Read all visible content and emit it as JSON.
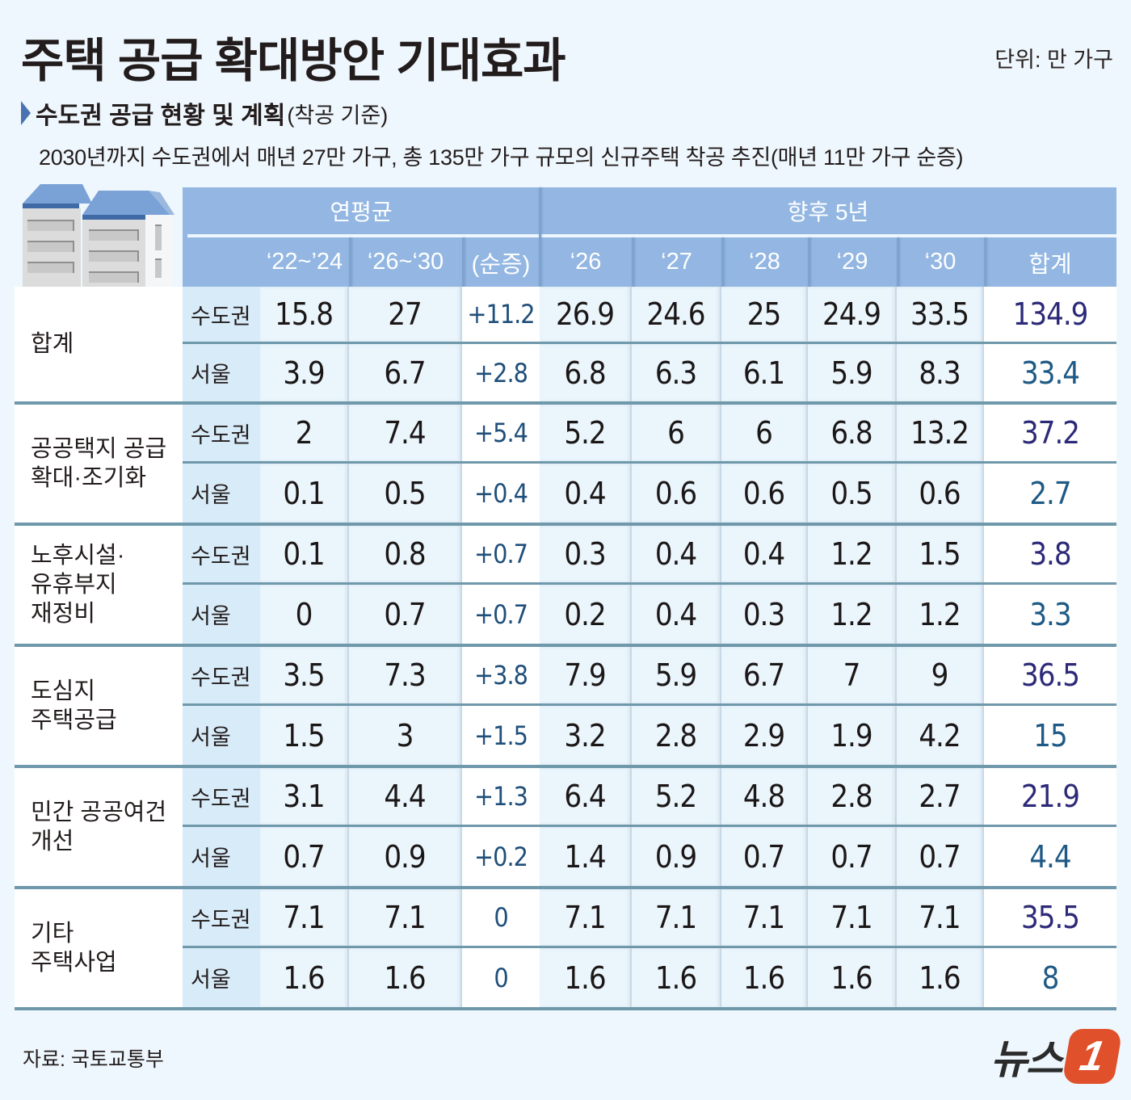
{
  "header": {
    "title": "주택 공급 확대방안 기대효과",
    "unit": "단위: 만 가구",
    "subtitle": "수도권 공급 현황 및 계획",
    "subtitle_note": "(착공 기준)",
    "description": "2030년까지 수도권에서 매년 27만 가구, 총 135만 가구 규모의 신규주택 착공 추진(매년 11만 가구 순증)"
  },
  "table": {
    "group_headers": [
      "연평균",
      "향후 5년"
    ],
    "columns": [
      "‘22~’24",
      "‘26~‘30",
      "(순증)",
      "‘26",
      "‘27",
      "‘28",
      "‘29",
      "‘30",
      "합계"
    ],
    "regions": [
      "수도권",
      "서울"
    ],
    "groups": [
      {
        "label": "합계",
        "rows": [
          {
            "region": "수도권",
            "values": [
              "15.8",
              "27",
              "+11.2",
              "26.9",
              "24.6",
              "25",
              "24.9",
              "33.5",
              "134.9"
            ]
          },
          {
            "region": "서울",
            "values": [
              "3.9",
              "6.7",
              "+2.8",
              "6.8",
              "6.3",
              "6.1",
              "5.9",
              "8.3",
              "33.4"
            ]
          }
        ]
      },
      {
        "label": "공공택지 공급\n확대·조기화",
        "rows": [
          {
            "region": "수도권",
            "values": [
              "2",
              "7.4",
              "+5.4",
              "5.2",
              "6",
              "6",
              "6.8",
              "13.2",
              "37.2"
            ]
          },
          {
            "region": "서울",
            "values": [
              "0.1",
              "0.5",
              "+0.4",
              "0.4",
              "0.6",
              "0.6",
              "0.5",
              "0.6",
              "2.7"
            ]
          }
        ]
      },
      {
        "label": "노후시설·\n유휴부지\n재정비",
        "rows": [
          {
            "region": "수도권",
            "values": [
              "0.1",
              "0.8",
              "+0.7",
              "0.3",
              "0.4",
              "0.4",
              "1.2",
              "1.5",
              "3.8"
            ]
          },
          {
            "region": "서울",
            "values": [
              "0",
              "0.7",
              "+0.7",
              "0.2",
              "0.4",
              "0.3",
              "1.2",
              "1.2",
              "3.3"
            ]
          }
        ]
      },
      {
        "label": "도심지\n주택공급",
        "rows": [
          {
            "region": "수도권",
            "values": [
              "3.5",
              "7.3",
              "+3.8",
              "7.9",
              "5.9",
              "6.7",
              "7",
              "9",
              "36.5"
            ]
          },
          {
            "region": "서울",
            "values": [
              "1.5",
              "3",
              "+1.5",
              "3.2",
              "2.8",
              "2.9",
              "1.9",
              "4.2",
              "15"
            ]
          }
        ]
      },
      {
        "label": "민간 공공여건\n개선",
        "rows": [
          {
            "region": "수도권",
            "values": [
              "3.1",
              "4.4",
              "+1.3",
              "6.4",
              "5.2",
              "4.8",
              "2.8",
              "2.7",
              "21.9"
            ]
          },
          {
            "region": "서울",
            "values": [
              "0.7",
              "0.9",
              "+0.2",
              "1.4",
              "0.9",
              "0.7",
              "0.7",
              "0.7",
              "4.4"
            ]
          }
        ]
      },
      {
        "label": "기타\n주택사업",
        "rows": [
          {
            "region": "수도권",
            "values": [
              "7.1",
              "7.1",
              "0",
              "7.1",
              "7.1",
              "7.1",
              "7.1",
              "7.1",
              "35.5"
            ]
          },
          {
            "region": "서울",
            "values": [
              "1.6",
              "1.6",
              "0",
              "1.6",
              "1.6",
              "1.6",
              "1.6",
              "1.6",
              "8"
            ]
          }
        ]
      }
    ]
  },
  "footer": {
    "source": "자료: 국토교통부",
    "logo_text": "뉴스",
    "logo_badge": "1"
  },
  "colors": {
    "header_bg": "#93b7e2",
    "region_bg": "#d7ebf8",
    "data_bg": "#eaf5fc",
    "row_divider": "#6f98ab",
    "total_metro": "#2c2a78",
    "total_seoul": "#1e5a85",
    "net_increase": "#1f4f7a",
    "logo_accent": "#e0502a",
    "page_bg": "#eef7fd"
  },
  "chart_data": {
    "type": "table",
    "title": "주택 공급 확대방안 기대효과",
    "subtitle": "수도권 공급 현황 및 계획(착공 기준)",
    "unit": "만 가구",
    "columns": [
      "category",
      "region",
      "‘22~’24 avg",
      "‘26~‘30 avg",
      "net increase",
      "‘26",
      "‘27",
      "‘28",
      "‘29",
      "‘30",
      "total"
    ],
    "rows": [
      [
        "합계",
        "수도권",
        15.8,
        27,
        11.2,
        26.9,
        24.6,
        25,
        24.9,
        33.5,
        134.9
      ],
      [
        "합계",
        "서울",
        3.9,
        6.7,
        2.8,
        6.8,
        6.3,
        6.1,
        5.9,
        8.3,
        33.4
      ],
      [
        "공공택지 공급 확대·조기화",
        "수도권",
        2,
        7.4,
        5.4,
        5.2,
        6,
        6,
        6.8,
        13.2,
        37.2
      ],
      [
        "공공택지 공급 확대·조기화",
        "서울",
        0.1,
        0.5,
        0.4,
        0.4,
        0.6,
        0.6,
        0.5,
        0.6,
        2.7
      ],
      [
        "노후시설·유휴부지 재정비",
        "수도권",
        0.1,
        0.8,
        0.7,
        0.3,
        0.4,
        0.4,
        1.2,
        1.5,
        3.8
      ],
      [
        "노후시설·유휴부지 재정비",
        "서울",
        0,
        0.7,
        0.7,
        0.2,
        0.4,
        0.3,
        1.2,
        1.2,
        3.3
      ],
      [
        "도심지 주택공급",
        "수도권",
        3.5,
        7.3,
        3.8,
        7.9,
        5.9,
        6.7,
        7,
        9,
        36.5
      ],
      [
        "도심지 주택공급",
        "서울",
        1.5,
        3,
        1.5,
        3.2,
        2.8,
        2.9,
        1.9,
        4.2,
        15
      ],
      [
        "민간 공공여건 개선",
        "수도권",
        3.1,
        4.4,
        1.3,
        6.4,
        5.2,
        4.8,
        2.8,
        2.7,
        21.9
      ],
      [
        "민간 공공여건 개선",
        "서울",
        0.7,
        0.9,
        0.2,
        1.4,
        0.9,
        0.7,
        0.7,
        0.7,
        4.4
      ],
      [
        "기타 주택사업",
        "수도권",
        7.1,
        7.1,
        0,
        7.1,
        7.1,
        7.1,
        7.1,
        7.1,
        35.5
      ],
      [
        "기타 주택사업",
        "서울",
        1.6,
        1.6,
        0,
        1.6,
        1.6,
        1.6,
        1.6,
        1.6,
        8
      ]
    ],
    "source": "국토교통부"
  }
}
